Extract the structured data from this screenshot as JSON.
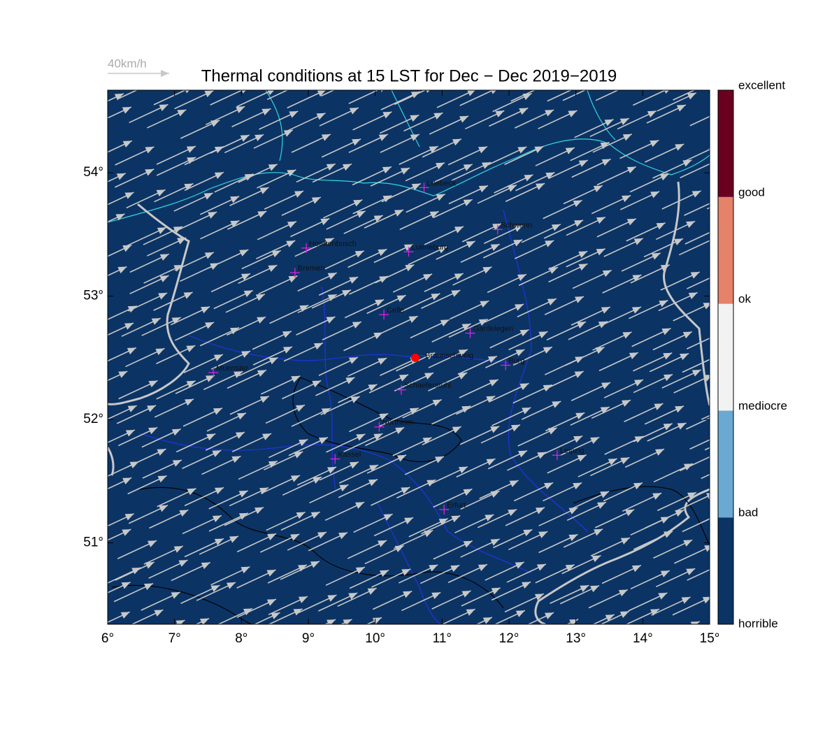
{
  "chart_data": {
    "type": "map",
    "title": "Thermal conditions at 15 LST for Dec − Dec  2019−2019",
    "background_color": "#0b3465",
    "xlim": [
      6,
      15
    ],
    "ylim": [
      50.34,
      54.67
    ],
    "xticks": [
      {
        "value": 6,
        "label": "6°"
      },
      {
        "value": 7,
        "label": "7°"
      },
      {
        "value": 8,
        "label": "8°"
      },
      {
        "value": 9,
        "label": "9°"
      },
      {
        "value": 10,
        "label": "10°"
      },
      {
        "value": 11,
        "label": "11°"
      },
      {
        "value": 12,
        "label": "12°"
      },
      {
        "value": 13,
        "label": "13°"
      },
      {
        "value": 14,
        "label": "14°"
      },
      {
        "value": 15,
        "label": "15°"
      }
    ],
    "yticks": [
      {
        "value": 51,
        "label": "51°"
      },
      {
        "value": 52,
        "label": "52°"
      },
      {
        "value": 53,
        "label": "53°"
      },
      {
        "value": 54,
        "label": "54°"
      }
    ],
    "wind": {
      "reference_label": "40km/h",
      "reference_speed": 40,
      "speed": 28,
      "angle": 25,
      "color": "#c8c8c8"
    },
    "cities": [
      {
        "name": "Luebeck",
        "lon": 10.73,
        "lat": 53.88
      },
      {
        "name": "Schwerin",
        "lon": 11.83,
        "lat": 53.54
      },
      {
        "name": "Hoettenbusch",
        "lon": 8.97,
        "lat": 53.39
      },
      {
        "name": "Lueneburg",
        "lon": 10.5,
        "lat": 53.36
      },
      {
        "name": "Bremen",
        "lon": 8.8,
        "lat": 53.19
      },
      {
        "name": "Celle",
        "lon": 10.13,
        "lat": 52.85
      },
      {
        "name": "Gardelegen",
        "lon": 11.42,
        "lat": 52.7
      },
      {
        "name": "Burg",
        "lon": 11.95,
        "lat": 52.44
      },
      {
        "name": "Muenster",
        "lon": 7.58,
        "lat": 52.38
      },
      {
        "name": "Schaeferstuhl",
        "lon": 10.39,
        "lat": 52.24
      },
      {
        "name": "Northeim",
        "lon": 10.06,
        "lat": 51.94
      },
      {
        "name": "Kassel",
        "lon": 9.4,
        "lat": 51.68
      },
      {
        "name": "Leipzig",
        "lon": 12.72,
        "lat": 51.71
      },
      {
        "name": "Erfurt",
        "lon": 11.03,
        "lat": 51.27
      }
    ],
    "site": {
      "name": "Braunschweig",
      "lon": 10.6,
      "lat": 52.5,
      "color": "#ff0000"
    },
    "colorbar": {
      "levels": [
        "horrible",
        "bad",
        "mediocre",
        "ok",
        "good",
        "excellent"
      ],
      "colors": [
        "#0b3465",
        "#6aa9d2",
        "#f2f2f2",
        "#e4826a",
        "#6a0020"
      ]
    }
  }
}
